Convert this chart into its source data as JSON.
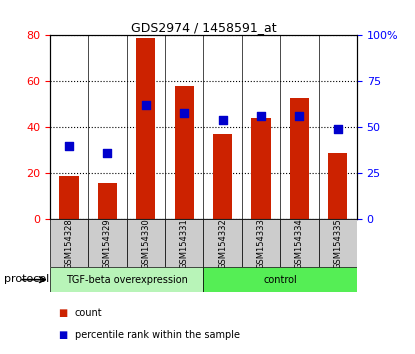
{
  "title": "GDS2974 / 1458591_at",
  "samples": [
    "GSM154328",
    "GSM154329",
    "GSM154330",
    "GSM154331",
    "GSM154332",
    "GSM154333",
    "GSM154334",
    "GSM154335"
  ],
  "counts": [
    19,
    16,
    79,
    58,
    37,
    44,
    53,
    29
  ],
  "percentile_ranks": [
    40,
    36,
    62,
    58,
    54,
    56,
    56,
    49
  ],
  "bar_color": "#CC2200",
  "dot_color": "#0000CC",
  "left_ylim": [
    0,
    80
  ],
  "right_ylim": [
    0,
    100
  ],
  "left_yticks": [
    0,
    20,
    40,
    60,
    80
  ],
  "right_yticks": [
    0,
    25,
    50,
    75,
    100
  ],
  "right_yticklabels": [
    "0",
    "25",
    "50",
    "75",
    "100%"
  ],
  "bar_width": 0.5,
  "dot_size": 30,
  "tgf_color": "#b8f4b8",
  "ctrl_color": "#55ee55",
  "gray_color": "#cccccc",
  "protocol_label": "protocol",
  "group1_label": "TGF-beta overexpression",
  "group2_label": "control",
  "legend_count": "count",
  "legend_pct": "percentile rank within the sample",
  "n_tgf": 4,
  "n_ctrl": 4
}
